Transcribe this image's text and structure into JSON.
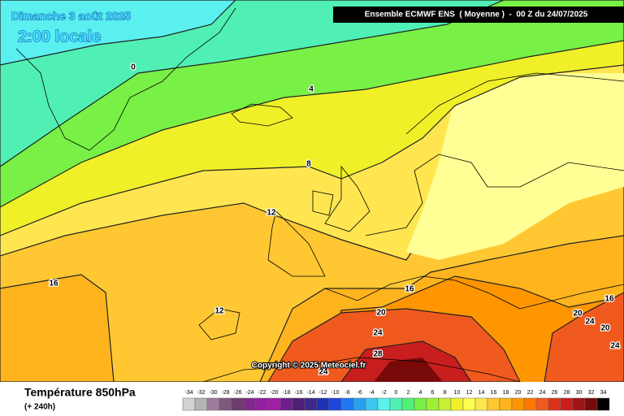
{
  "header": {
    "date": "Dimanche 3 août 2025",
    "time": "2:00 locale",
    "model": "Ensemble ECMWF ENS  ( Moyenne )  -  00 Z du 24/07/2025"
  },
  "copyright": "Copyright © 2025 Meteociel.fr",
  "contour_labels": [
    "0",
    "4",
    "8",
    "12",
    "16",
    "12",
    "16",
    "20",
    "24",
    "28",
    "24",
    "20",
    "24",
    "20",
    "24",
    "16"
  ],
  "footer": {
    "title": "Température 850hPa",
    "subtitle": "(+ 240h)"
  },
  "legend": {
    "labels": [
      -34,
      -32,
      -30,
      -28,
      -26,
      -24,
      -22,
      -20,
      -18,
      -16,
      -14,
      -12,
      -10,
      -8,
      -6,
      -4,
      -2,
      0,
      2,
      4,
      6,
      8,
      10,
      12,
      14,
      16,
      18,
      20,
      22,
      24,
      26,
      28,
      30,
      32,
      34
    ],
    "colors": [
      "#d2d2d2",
      "#b4b4b4",
      "#9b7d9b",
      "#7d5a7d",
      "#6e3c6e",
      "#82288c",
      "#961ea0",
      "#a01eaa",
      "#6e1e8c",
      "#501e78",
      "#3c288c",
      "#1e32b4",
      "#1e46dc",
      "#1e78f0",
      "#28a0f0",
      "#3cc8f0",
      "#5af0f0",
      "#50f0b4",
      "#50f078",
      "#78f046",
      "#a0f032",
      "#c8f032",
      "#f0f028",
      "#ffff50",
      "#ffe650",
      "#ffc832",
      "#ffb41e",
      "#ff9600",
      "#ff7800",
      "#f05a1e",
      "#dc321e",
      "#c81e1e",
      "#a01414",
      "#780a0a",
      "#000000"
    ]
  }
}
